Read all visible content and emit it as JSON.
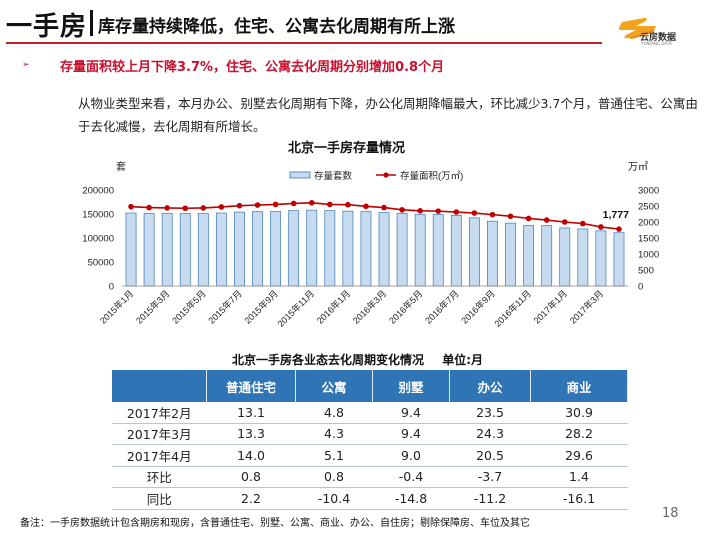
{
  "header": {
    "title": "一手房",
    "subtitle": "库存量持续降低，住宅、公寓去化周期有所上涨",
    "logo_text": "云房数据",
    "logo_en": "YUNFANG DATA",
    "accent_color": "#c21f2b"
  },
  "bullet": {
    "text": "存量面积较上月下降3.7%，住宅、公寓去化周期分别增加0.8个月"
  },
  "paragraph": "从物业类型来看，本月办公、别墅去化周期有下降，办公化周期降幅最大，环比减少3.7个月，普通住宅、公寓由于去化减慢，去化周期有所增长。",
  "chart_data": {
    "type": "bar+line",
    "title": "北京一手房存量情况",
    "left_axis_unit": "套",
    "right_axis_unit": "万㎡",
    "legend": [
      "存量套数",
      "存量面积(万㎡)"
    ],
    "left_ticks": [
      "0",
      "50000",
      "100000",
      "150000",
      "200000"
    ],
    "right_ticks": [
      "0",
      "500",
      "1000",
      "1500",
      "2000",
      "2500",
      "3000"
    ],
    "ylim_left": [
      0,
      200000
    ],
    "ylim_right": [
      0,
      3000
    ],
    "categories": [
      "2015年1月",
      "2015年2月",
      "2015年3月",
      "2015年4月",
      "2015年5月",
      "2015年6月",
      "2015年7月",
      "2015年8月",
      "2015年9月",
      "2015年10月",
      "2015年11月",
      "2015年12月",
      "2016年1月",
      "2016年2月",
      "2016年3月",
      "2016年4月",
      "2016年5月",
      "2016年6月",
      "2016年7月",
      "2016年8月",
      "2016年9月",
      "2016年10月",
      "2016年11月",
      "2016年12月",
      "2017年1月",
      "2017年2月",
      "2017年3月",
      "2017年4月"
    ],
    "x_labels": [
      "2015年1月",
      "2015年3月",
      "2015年5月",
      "2015年7月",
      "2015年9月",
      "2015年11月",
      "2016年1月",
      "2016年3月",
      "2016年5月",
      "2016年7月",
      "2016年9月",
      "2016年11月",
      "2017年1月",
      "2017年3月"
    ],
    "series_bar": {
      "name": "存量套数",
      "values": [
        152000,
        151000,
        151500,
        151000,
        151000,
        152000,
        154000,
        155000,
        155000,
        157000,
        158000,
        157000,
        156000,
        155000,
        153000,
        151000,
        149000,
        149000,
        147000,
        142000,
        135000,
        131000,
        126000,
        126000,
        121000,
        119000,
        115000,
        111000
      ]
    },
    "series_line": {
      "name": "存量面积(万㎡)",
      "values": [
        2480,
        2450,
        2440,
        2430,
        2440,
        2470,
        2510,
        2530,
        2550,
        2580,
        2600,
        2550,
        2540,
        2490,
        2450,
        2380,
        2350,
        2340,
        2310,
        2280,
        2230,
        2180,
        2110,
        2060,
        2000,
        1950,
        1845,
        1777
      ]
    },
    "last_label": "1,777",
    "bar_color": "#c7dbf0",
    "bar_edge": "#3c78b4",
    "line_color": "#c00000"
  },
  "table": {
    "title": "北京一手房各业态去化周期变化情况",
    "unit": "单位:月",
    "headers": [
      "",
      "普通住宅",
      "公寓",
      "别墅",
      "办公",
      "商业"
    ],
    "rows": [
      {
        "label": "2017年2月",
        "values": [
          "13.1",
          "4.8",
          "9.4",
          "23.5",
          "30.9"
        ]
      },
      {
        "label": "2017年3月",
        "values": [
          "13.3",
          "4.3",
          "9.4",
          "24.3",
          "28.2"
        ]
      },
      {
        "label": "2017年4月",
        "values": [
          "14.0",
          "5.1",
          "9.0",
          "20.5",
          "29.6"
        ]
      },
      {
        "label": "环比",
        "values": [
          "0.8",
          "0.8",
          "-0.4",
          "-3.7",
          "1.4"
        ]
      },
      {
        "label": "同比",
        "values": [
          "2.2",
          "-10.4",
          "-14.8",
          "-11.2",
          "-16.1"
        ]
      }
    ],
    "header_color": "#2f75b5"
  },
  "footnote": "备注：一手房数据统计包含期房和现房，含普通住宅、别墅、公寓、商业、办公、自住房；剔除保障房、车位及其它",
  "page_number": "18"
}
